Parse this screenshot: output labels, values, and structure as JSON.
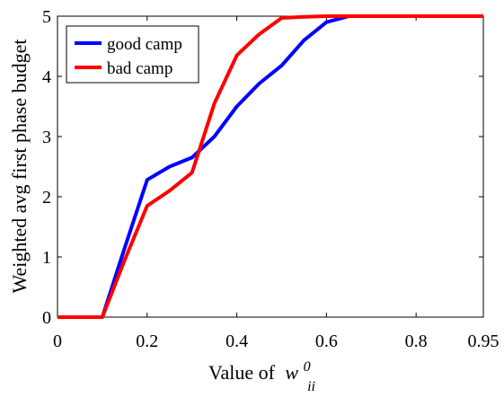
{
  "chart_data": {
    "type": "line",
    "title": "",
    "xlabel": "Value of",
    "xlabel_symbol": "w",
    "xlabel_sup": "0",
    "xlabel_sub": "ii",
    "ylabel": "Weighted avg first phase budget",
    "xlim": [
      0,
      0.95
    ],
    "ylim": [
      0,
      5
    ],
    "xticks": [
      0,
      0.2,
      0.4,
      0.6,
      0.8,
      0.95
    ],
    "xtick_labels": [
      "0",
      "0.2",
      "0.4",
      "0.6",
      "0.8",
      "0.95"
    ],
    "yticks": [
      0,
      1,
      2,
      3,
      4,
      5
    ],
    "ytick_labels": [
      "0",
      "1",
      "2",
      "3",
      "4",
      "5"
    ],
    "grid": false,
    "legend_position": "top-left",
    "series": [
      {
        "name": "good camp",
        "color": "#0000ff",
        "x": [
          0,
          0.1,
          0.15,
          0.2,
          0.25,
          0.3,
          0.35,
          0.4,
          0.45,
          0.5,
          0.55,
          0.6,
          0.65,
          0.7,
          0.75,
          0.8,
          0.85,
          0.9,
          0.95
        ],
        "y": [
          0,
          0,
          1.15,
          2.28,
          2.5,
          2.65,
          3.0,
          3.5,
          3.88,
          4.18,
          4.6,
          4.9,
          5.0,
          5.0,
          5.0,
          5.0,
          5.0,
          5.0,
          5.0
        ]
      },
      {
        "name": "bad camp",
        "color": "#ff0000",
        "x": [
          0,
          0.1,
          0.15,
          0.2,
          0.25,
          0.3,
          0.35,
          0.4,
          0.45,
          0.5,
          0.55,
          0.6,
          0.65,
          0.7,
          0.75,
          0.8,
          0.85,
          0.9,
          0.95
        ],
        "y": [
          0,
          0,
          0.95,
          1.85,
          2.1,
          2.4,
          3.55,
          4.35,
          4.7,
          4.97,
          4.99,
          5.0,
          5.0,
          5.0,
          5.0,
          5.0,
          5.0,
          5.0,
          5.0
        ]
      }
    ]
  }
}
